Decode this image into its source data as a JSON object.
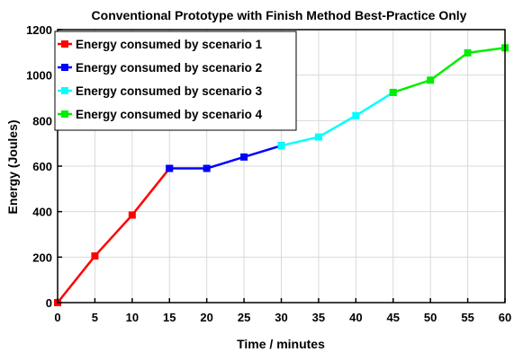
{
  "chart_data": {
    "type": "line",
    "title": "Conventional Prototype with Finish Method Best-Practice Only",
    "xlabel": "Time / minutes",
    "ylabel": "Energy (Joules)",
    "xlim": [
      0,
      60
    ],
    "ylim": [
      0,
      1200
    ],
    "xticks": [
      "0",
      "5",
      "10",
      "15",
      "20",
      "25",
      "30",
      "35",
      "40",
      "45",
      "50",
      "55",
      "60"
    ],
    "yticks": [
      "0",
      "200",
      "400",
      "600",
      "800",
      "1000",
      "1200"
    ],
    "grid": true,
    "legend_position": "top-left",
    "series": [
      {
        "name": "Energy consumed by scenario 1",
        "color": "#ff0000",
        "x": [
          0,
          5,
          10,
          15
        ],
        "y": [
          0,
          205,
          385,
          590
        ]
      },
      {
        "name": "Energy consumed by scenario 2",
        "color": "#0000ff",
        "x": [
          15,
          20,
          25,
          30
        ],
        "y": [
          590,
          590,
          640,
          690
        ]
      },
      {
        "name": "Energy consumed by scenario 3",
        "color": "#00ffff",
        "x": [
          30,
          35,
          40,
          45
        ],
        "y": [
          690,
          728,
          822,
          924
        ]
      },
      {
        "name": "Energy consumed by scenario 4",
        "color": "#00ee00",
        "x": [
          45,
          50,
          55,
          60
        ],
        "y": [
          924,
          978,
          1098,
          1120
        ]
      }
    ]
  }
}
